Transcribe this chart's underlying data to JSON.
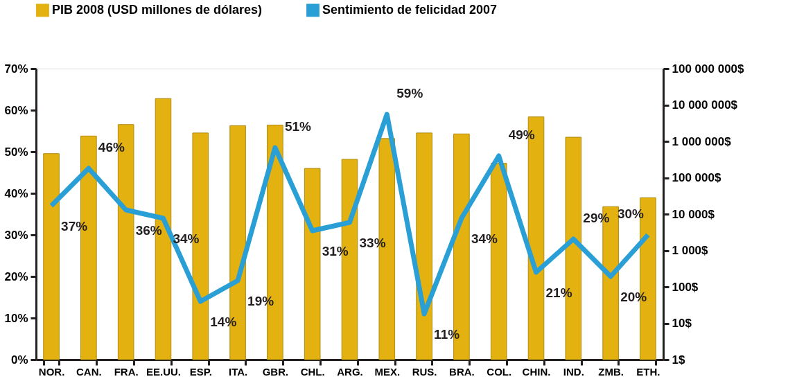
{
  "chart_data": {
    "type": "bar",
    "categories": [
      "NOR.",
      "CAN.",
      "FRA.",
      "EE.UU.",
      "ESP.",
      "ITA.",
      "GBR.",
      "CHL.",
      "ARG.",
      "MEX.",
      "RUS.",
      "BRA.",
      "COL.",
      "CHIN.",
      "IND.",
      "ZMB.",
      "ETH."
    ],
    "series": [
      {
        "name": "PIB 2008 (USD millones de dólares)",
        "axis": "y2",
        "color": "#e3b110",
        "values": [
          460000,
          1400000,
          2900000,
          15000000,
          1700000,
          2700000,
          2800000,
          180000,
          320000,
          1200000,
          1700000,
          1600000,
          250000,
          4700000,
          1300000,
          16000,
          28000
        ]
      },
      {
        "name": "Sentimiento de felicidad 2007",
        "type": "line",
        "color": "#2a9fd6",
        "values": [
          37,
          46,
          36,
          34,
          14,
          19,
          51,
          31,
          33,
          59,
          11,
          34,
          49,
          21,
          29,
          20,
          30
        ],
        "value_labels": [
          "37%",
          "46%",
          "36%",
          "34%",
          "14%",
          "19%",
          "51%",
          "31%",
          "33%",
          "59%",
          "11%",
          "34%",
          "49%",
          "21%",
          "29%",
          "20%",
          "30%"
        ]
      }
    ],
    "ylim": [
      0,
      70
    ],
    "yticks": [
      {
        "value": 0,
        "label": "0%"
      },
      {
        "value": 10,
        "label": "10%"
      },
      {
        "value": 20,
        "label": "20%"
      },
      {
        "value": 30,
        "label": "30%"
      },
      {
        "value": 40,
        "label": "40%"
      },
      {
        "value": 50,
        "label": "50%"
      },
      {
        "value": 60,
        "label": "60%"
      },
      {
        "value": 70,
        "label": "70%"
      }
    ],
    "y2lim": [
      1,
      100000000
    ],
    "y2ticks": [
      {
        "value": 1,
        "label": "1$"
      },
      {
        "value": 10,
        "label": "10$"
      },
      {
        "value": 100,
        "label": "100$"
      },
      {
        "value": 1000,
        "label": "1 000$"
      },
      {
        "value": 10000,
        "label": "10 000$"
      },
      {
        "value": 100000,
        "label": "100 000$"
      },
      {
        "value": 1000000,
        "label": "1 000 000$"
      },
      {
        "value": 10000000,
        "label": "10 000 000$"
      },
      {
        "value": 100000000,
        "label": "100 000 000$"
      }
    ],
    "log": "y2",
    "grid": false,
    "legend": "top"
  }
}
